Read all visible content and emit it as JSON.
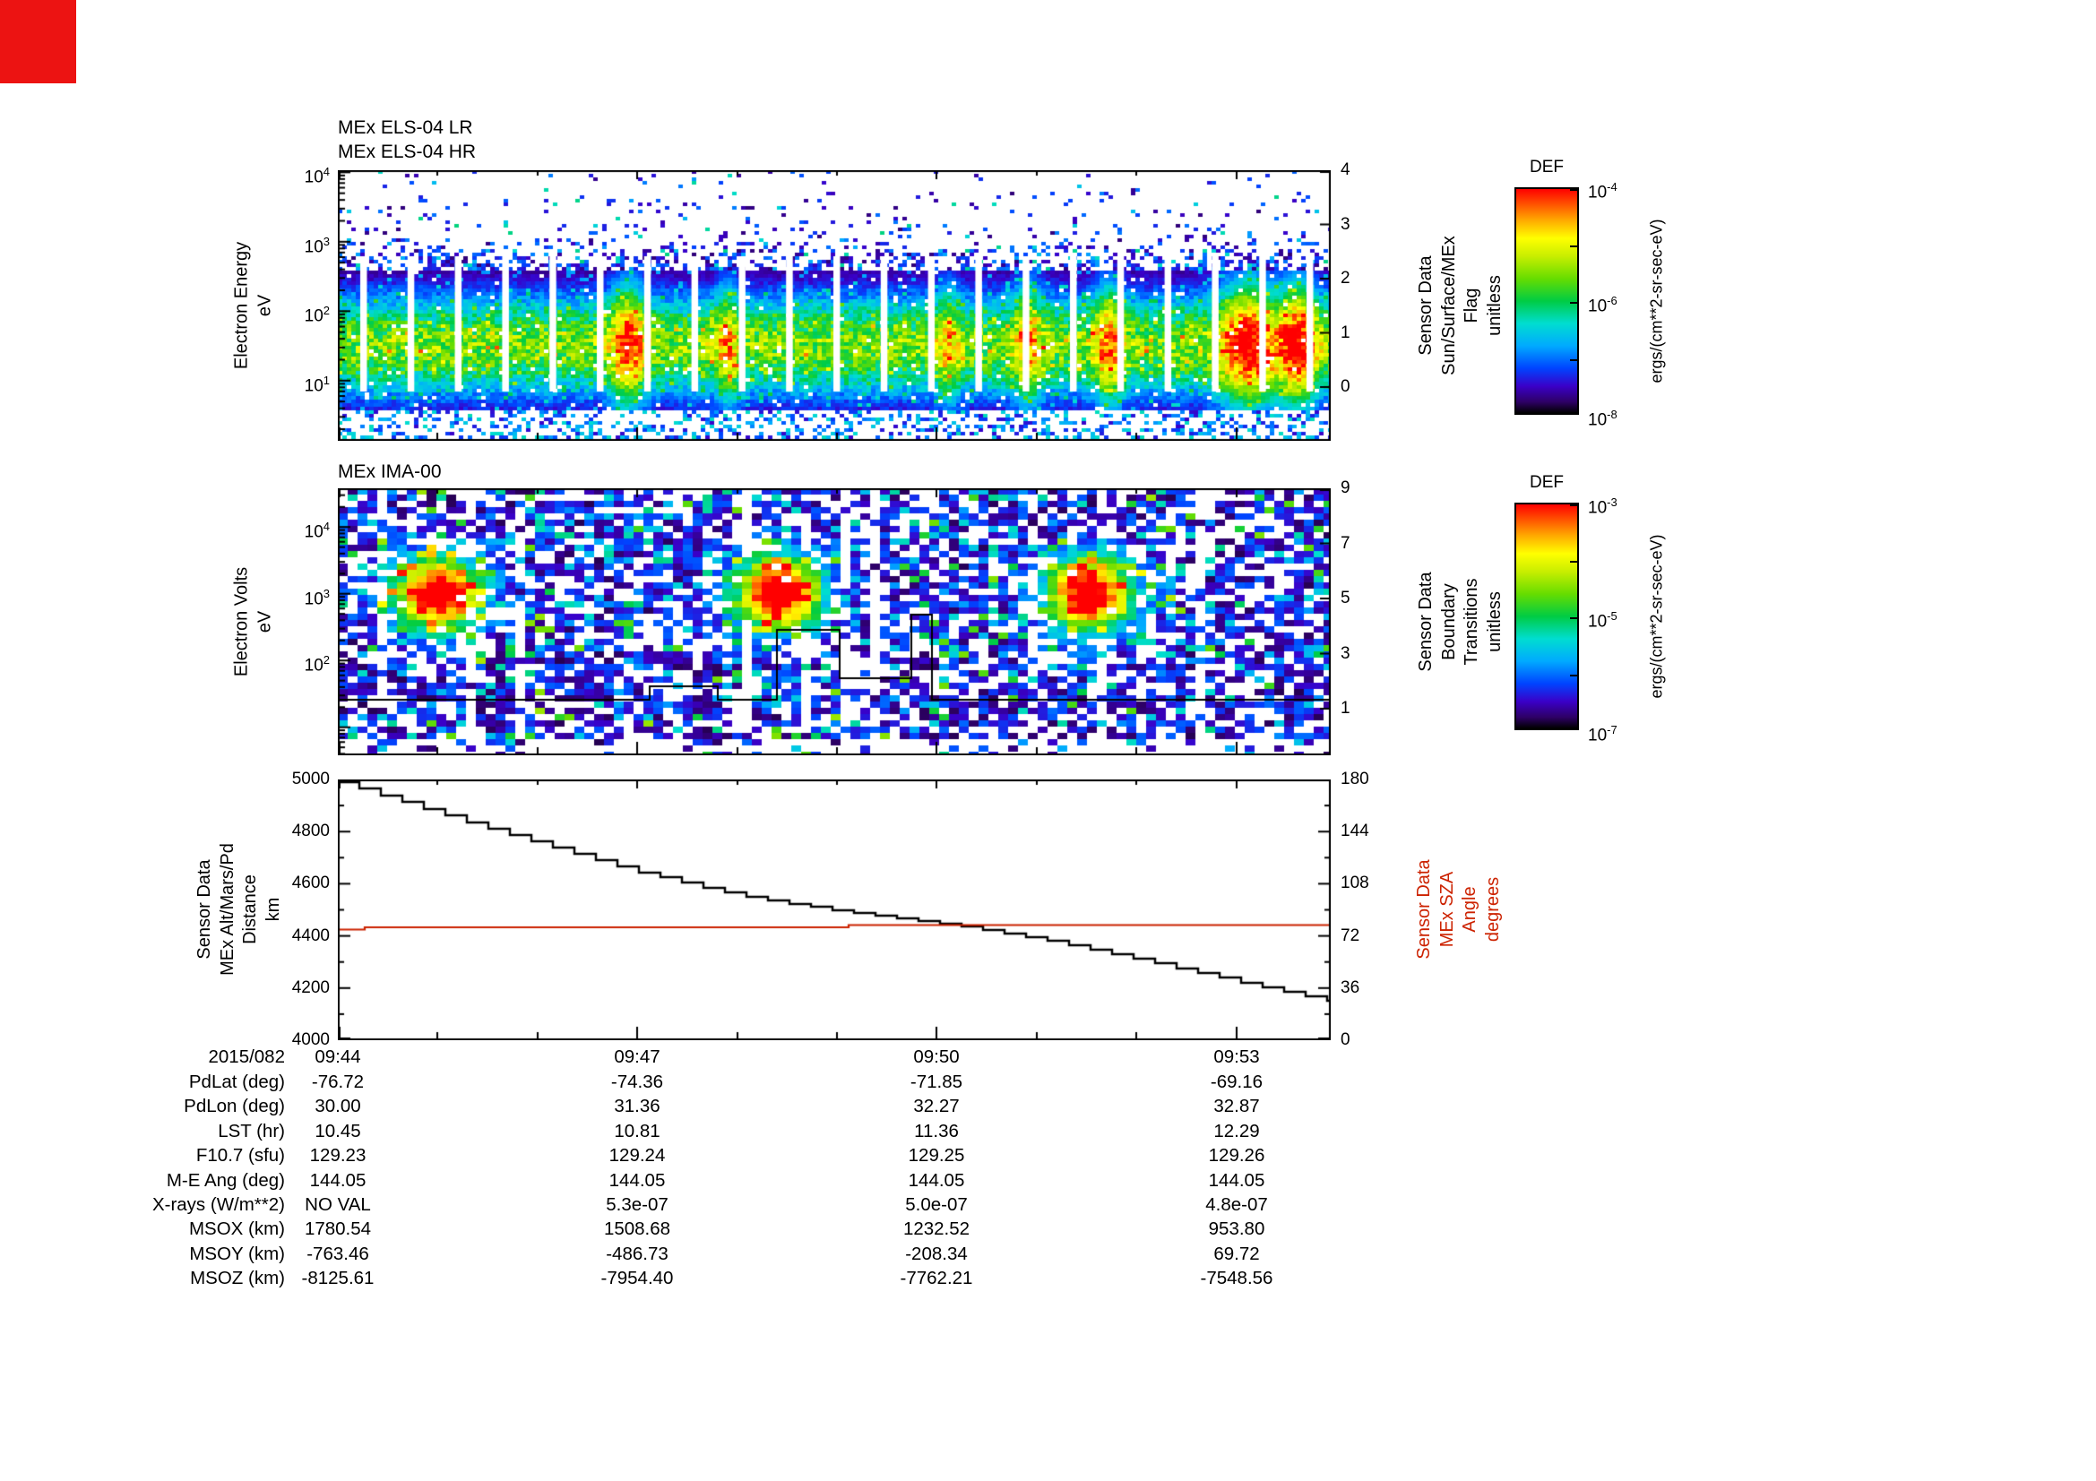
{
  "corner_marker": {
    "color": "#ec1312"
  },
  "colormap": {
    "stops": [
      "#000000",
      "#2e0066",
      "#3a00c8",
      "#0044ff",
      "#00aaff",
      "#00ddd0",
      "#00cc44",
      "#66dd00",
      "#c8ee00",
      "#ffff00",
      "#ffaa00",
      "#ff5500",
      "#ff0000"
    ],
    "positions": [
      0,
      0.05,
      0.12,
      0.2,
      0.3,
      0.4,
      0.5,
      0.6,
      0.7,
      0.78,
      0.86,
      0.93,
      1
    ]
  },
  "panels": {
    "els": {
      "titles": [
        "MEx ELS-04 LR",
        "MEx ELS-04 HR"
      ],
      "ylabel": "Electron Energy\neV",
      "yticks": [
        {
          "base": "10",
          "exp": "4"
        },
        {
          "base": "10",
          "exp": "3"
        },
        {
          "base": "10",
          "exp": "2"
        },
        {
          "base": "10",
          "exp": "1"
        }
      ],
      "right_label": "Sensor Data\nSun/Surface/MEx\nFlag\nunitless",
      "right_ticks": [
        "4",
        "3",
        "2",
        "1",
        "0"
      ],
      "colorbar": {
        "title": "DEF",
        "ticks": [
          {
            "base": "10",
            "exp": "-4"
          },
          {
            "base": "10",
            "exp": "-6"
          },
          {
            "base": "10",
            "exp": "-8"
          }
        ],
        "unit": "ergs/(cm**2-sr-sec-eV)"
      }
    },
    "ima": {
      "title": "MEx IMA-00",
      "ylabel": "Electron Volts\neV",
      "yticks": [
        {
          "base": "10",
          "exp": "4"
        },
        {
          "base": "10",
          "exp": "3"
        },
        {
          "base": "10",
          "exp": "2"
        }
      ],
      "right_label": "Sensor Data\nBoundary\nTransitions\nunitless",
      "right_ticks": [
        "9",
        "7",
        "5",
        "3",
        "1"
      ],
      "colorbar": {
        "title": "DEF",
        "ticks": [
          {
            "base": "10",
            "exp": "-3"
          },
          {
            "base": "10",
            "exp": "-5"
          },
          {
            "base": "10",
            "exp": "-7"
          }
        ],
        "unit": "ergs/(cm**2-sr-sec-eV)"
      }
    },
    "line": {
      "ylabel": "Sensor Data\nMEx Alt/Mars/Pd\nDistance\nkm",
      "yticks": [
        "5000",
        "4800",
        "4600",
        "4400",
        "4200",
        "4000"
      ],
      "right_label": "Sensor Data\nMEx SZA\nAngle\ndegrees",
      "right_ticks": [
        "180",
        "144",
        "108",
        "72",
        "36",
        "0"
      ],
      "right_color": "#cc2200"
    }
  },
  "table": {
    "date_label": "2015/082",
    "columns": [
      "09:44",
      "09:47",
      "09:50",
      "09:53"
    ],
    "rows": [
      {
        "label": "PdLat (deg)",
        "values": [
          "-76.72",
          "-74.36",
          "-71.85",
          "-69.16"
        ]
      },
      {
        "label": "PdLon (deg)",
        "values": [
          "30.00",
          "31.36",
          "32.27",
          "32.87"
        ]
      },
      {
        "label": "LST (hr)",
        "values": [
          "10.45",
          "10.81",
          "11.36",
          "12.29"
        ]
      },
      {
        "label": "F10.7 (sfu)",
        "values": [
          "129.23",
          "129.24",
          "129.25",
          "129.26"
        ]
      },
      {
        "label": "M-E Ang (deg)",
        "values": [
          "144.05",
          "144.05",
          "144.05",
          "144.05"
        ]
      },
      {
        "label": "X-rays (W/m**2)",
        "values": [
          "NO VAL",
          "5.3e-07",
          "5.0e-07",
          "4.8e-07"
        ]
      },
      {
        "label": "MSOX (km)",
        "values": [
          "1780.54",
          "1508.68",
          "1232.52",
          "953.80"
        ]
      },
      {
        "label": "MSOY (km)",
        "values": [
          "-763.46",
          "-486.73",
          "-208.34",
          "69.72"
        ]
      },
      {
        "label": "MSOZ (km)",
        "values": [
          "-8125.61",
          "-7954.40",
          "-7762.21",
          "-7548.56"
        ]
      }
    ]
  },
  "chart_data": [
    {
      "type": "heatmap",
      "title": "MEx ELS-04 LR / MEx ELS-04 HR",
      "ylabel": "Electron Energy (eV)",
      "y_scale": "log",
      "y_range": [
        1,
        10000
      ],
      "x_range": [
        "2015/082 09:44",
        "2015/082 09:54"
      ],
      "colorbar": {
        "label": "DEF",
        "unit": "ergs/(cm**2-sr-sec-eV)",
        "scale": "log",
        "range": [
          1e-08,
          0.0001
        ]
      },
      "right_axis": {
        "label": "Sensor Data Sun/Surface/MEx Flag (unitless)",
        "range": [
          0,
          4
        ]
      },
      "features": {
        "main_band": "continuous high-flux band ~5-300 eV peaking near 30 eV, mostly green-yellow (~1e-6 to 1e-5)",
        "bright_red_patches_at": [
          "09:46.9",
          "09:47.9",
          "09:50.1",
          "09:50.9",
          "09:51.7",
          "09:53.1",
          "09:53.6"
        ],
        "data_gaps": "narrow vertical white gaps every ~30 s through the band",
        "scatter": "sparse blue-cyan points (~1e-8 to 1e-7) from 300 eV up to 10 keV"
      }
    },
    {
      "type": "heatmap",
      "title": "MEx IMA-00",
      "ylabel": "Electron Volts (eV)",
      "y_scale": "log",
      "y_range": [
        10,
        30000
      ],
      "x_range": [
        "2015/082 09:44",
        "2015/082 09:54"
      ],
      "colorbar": {
        "label": "DEF",
        "unit": "ergs/(cm**2-sr-sec-eV)",
        "scale": "log",
        "range": [
          1e-07,
          0.001
        ]
      },
      "right_axis": {
        "label": "Sensor Data Boundary Transitions (unitless)",
        "range": [
          0,
          9
        ]
      },
      "features": {
        "background": "patchy blue-violet mosaic (~1e-7 to 1e-6) with irregular white gaps",
        "bright_blobs": [
          {
            "time": "09:45.0",
            "energy_eV": 1000
          },
          {
            "time": "09:48.4",
            "energy_eV": 1000
          },
          {
            "time": "09:51.5",
            "energy_eV": 1000
          }
        ],
        "overlay_line": "black boundary-transition step line near value 1 with steps up toward ~3-5 between 09:48.5 and 09:50"
      }
    },
    {
      "type": "line",
      "x": [
        "09:44",
        "09:45",
        "09:46",
        "09:47",
        "09:48",
        "09:49",
        "09:50",
        "09:51",
        "09:52",
        "09:53",
        "09:54"
      ],
      "series": [
        {
          "name": "Sensor Data MEx Alt/Mars/Pd Distance (km)",
          "color": "#000000",
          "axis": "left",
          "values": [
            4990,
            4870,
            4755,
            4645,
            4555,
            4495,
            4450,
            4390,
            4310,
            4225,
            4145
          ]
        },
        {
          "name": "Sensor Data MEx SZA Angle (degrees)",
          "color": "#cc2200",
          "axis": "right",
          "values": [
            76.8,
            78.4,
            78.5,
            78.6,
            78.6,
            78.7,
            78.8,
            79.0,
            79.2,
            79.5,
            79.8
          ]
        }
      ],
      "ylim_left": [
        4000,
        5000
      ],
      "ylim_right": [
        0,
        180
      ],
      "x_ticks": [
        "09:44",
        "09:47",
        "09:50",
        "09:53"
      ],
      "grid": false
    }
  ]
}
